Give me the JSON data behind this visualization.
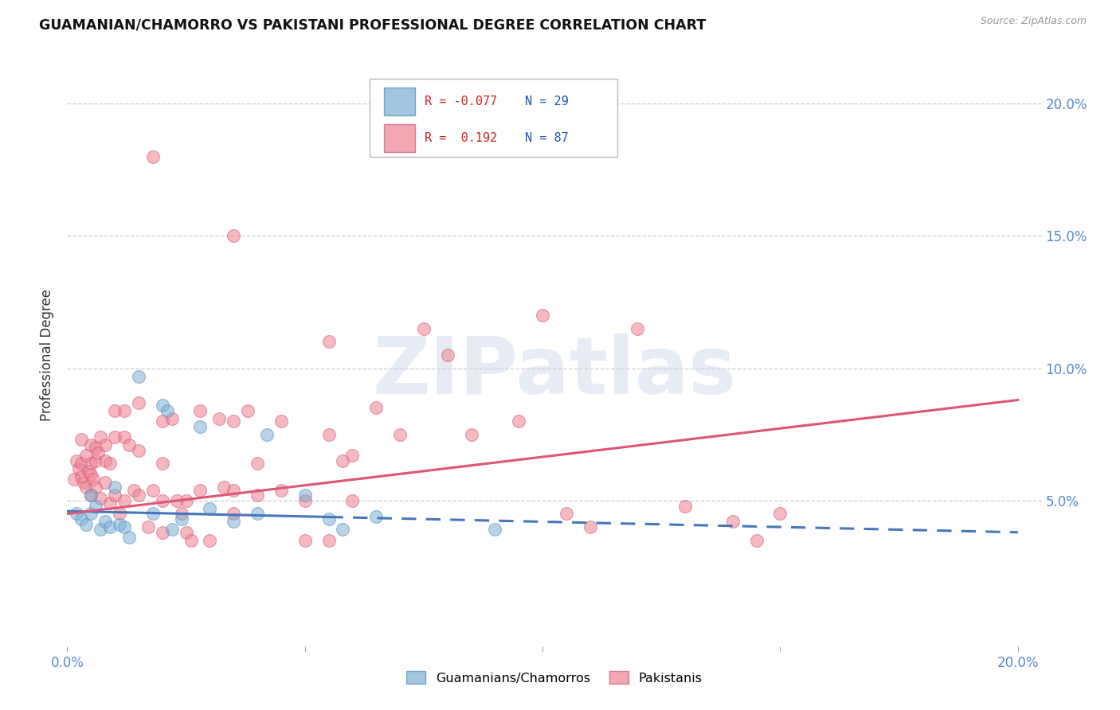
{
  "title": "GUAMANIAN/CHAMORRO VS PAKISTANI PROFESSIONAL DEGREE CORRELATION CHART",
  "source": "Source: ZipAtlas.com",
  "ylabel": "Professional Degree",
  "x_tick_labels": [
    "0.0%",
    "",
    "",
    "",
    "20.0%"
  ],
  "x_tick_values": [
    0.0,
    5.0,
    10.0,
    15.0,
    20.0
  ],
  "y_tick_labels": [
    "5.0%",
    "10.0%",
    "15.0%",
    "20.0%"
  ],
  "y_tick_values": [
    5.0,
    10.0,
    15.0,
    20.0
  ],
  "xlim": [
    0.0,
    20.5
  ],
  "ylim": [
    -0.5,
    21.5
  ],
  "legend_labels": [
    "Guamanians/Chamorros",
    "Pakistanis"
  ],
  "legend_r_values": [
    "-0.077",
    "0.192"
  ],
  "legend_n_values": [
    "29",
    "87"
  ],
  "blue_color": "#7bafd4",
  "pink_color": "#f08090",
  "blue_edge": "#5588bb",
  "pink_edge": "#cc5577",
  "trend_blue_color": "#4477bb",
  "trend_pink_color": "#dd5577",
  "watermark": "ZIPatlas",
  "blue_solid_end_x": 5.5,
  "blue_trend_x_start": 0.0,
  "blue_trend_x_end": 20.0,
  "blue_trend_y_start": 4.6,
  "blue_trend_y_end": 3.8,
  "pink_trend_x_start": 0.0,
  "pink_trend_x_end": 20.0,
  "pink_trend_y_start": 4.5,
  "pink_trend_y_end": 8.8,
  "blue_scatter": [
    [
      0.2,
      4.5
    ],
    [
      0.3,
      4.3
    ],
    [
      0.4,
      4.1
    ],
    [
      0.5,
      5.2
    ],
    [
      0.5,
      4.5
    ],
    [
      0.6,
      4.8
    ],
    [
      0.7,
      3.9
    ],
    [
      0.8,
      4.2
    ],
    [
      0.9,
      4.0
    ],
    [
      1.0,
      5.5
    ],
    [
      1.1,
      4.1
    ],
    [
      1.2,
      4.0
    ],
    [
      1.3,
      3.6
    ],
    [
      1.5,
      9.7
    ],
    [
      1.8,
      4.5
    ],
    [
      2.0,
      8.6
    ],
    [
      2.1,
      8.4
    ],
    [
      2.2,
      3.9
    ],
    [
      2.4,
      4.3
    ],
    [
      2.8,
      7.8
    ],
    [
      3.0,
      4.7
    ],
    [
      3.5,
      4.2
    ],
    [
      4.0,
      4.5
    ],
    [
      4.2,
      7.5
    ],
    [
      5.0,
      5.2
    ],
    [
      5.5,
      4.3
    ],
    [
      5.8,
      3.9
    ],
    [
      6.5,
      4.4
    ],
    [
      9.0,
      3.9
    ]
  ],
  "pink_scatter": [
    [
      0.15,
      5.8
    ],
    [
      0.2,
      6.5
    ],
    [
      0.25,
      6.2
    ],
    [
      0.3,
      7.3
    ],
    [
      0.3,
      6.4
    ],
    [
      0.3,
      5.9
    ],
    [
      0.35,
      5.7
    ],
    [
      0.4,
      6.7
    ],
    [
      0.4,
      5.5
    ],
    [
      0.45,
      6.1
    ],
    [
      0.5,
      7.1
    ],
    [
      0.5,
      6.4
    ],
    [
      0.5,
      6.0
    ],
    [
      0.5,
      5.2
    ],
    [
      0.55,
      5.8
    ],
    [
      0.6,
      7.0
    ],
    [
      0.6,
      6.5
    ],
    [
      0.6,
      5.5
    ],
    [
      0.65,
      6.8
    ],
    [
      0.7,
      7.4
    ],
    [
      0.7,
      5.1
    ],
    [
      0.8,
      7.1
    ],
    [
      0.8,
      6.5
    ],
    [
      0.8,
      5.7
    ],
    [
      0.9,
      6.4
    ],
    [
      0.9,
      4.9
    ],
    [
      1.0,
      8.4
    ],
    [
      1.0,
      7.4
    ],
    [
      1.0,
      5.2
    ],
    [
      1.1,
      4.5
    ],
    [
      1.2,
      8.4
    ],
    [
      1.2,
      7.4
    ],
    [
      1.2,
      5.0
    ],
    [
      1.3,
      7.1
    ],
    [
      1.4,
      5.4
    ],
    [
      1.5,
      8.7
    ],
    [
      1.5,
      6.9
    ],
    [
      1.5,
      5.2
    ],
    [
      1.7,
      4.0
    ],
    [
      1.8,
      5.4
    ],
    [
      1.8,
      18.0
    ],
    [
      2.0,
      8.0
    ],
    [
      2.0,
      6.4
    ],
    [
      2.0,
      5.0
    ],
    [
      2.0,
      3.8
    ],
    [
      2.2,
      8.1
    ],
    [
      2.3,
      5.0
    ],
    [
      2.4,
      4.5
    ],
    [
      2.5,
      5.0
    ],
    [
      2.5,
      3.8
    ],
    [
      2.6,
      3.5
    ],
    [
      2.8,
      8.4
    ],
    [
      2.8,
      5.4
    ],
    [
      3.0,
      3.5
    ],
    [
      3.2,
      8.1
    ],
    [
      3.3,
      5.5
    ],
    [
      3.5,
      8.0
    ],
    [
      3.5,
      15.0
    ],
    [
      3.5,
      5.4
    ],
    [
      3.5,
      4.5
    ],
    [
      3.8,
      8.4
    ],
    [
      4.0,
      6.4
    ],
    [
      4.0,
      5.2
    ],
    [
      4.5,
      8.0
    ],
    [
      4.5,
      5.4
    ],
    [
      5.0,
      5.0
    ],
    [
      5.0,
      3.5
    ],
    [
      5.5,
      11.0
    ],
    [
      5.5,
      7.5
    ],
    [
      5.5,
      3.5
    ],
    [
      5.8,
      6.5
    ],
    [
      6.0,
      6.7
    ],
    [
      6.0,
      5.0
    ],
    [
      6.5,
      8.5
    ],
    [
      7.0,
      7.5
    ],
    [
      7.5,
      11.5
    ],
    [
      8.0,
      10.5
    ],
    [
      8.5,
      7.5
    ],
    [
      9.5,
      8.0
    ],
    [
      10.0,
      12.0
    ],
    [
      10.5,
      4.5
    ],
    [
      11.0,
      4.0
    ],
    [
      12.0,
      11.5
    ],
    [
      13.0,
      4.8
    ],
    [
      14.0,
      4.2
    ],
    [
      14.5,
      3.5
    ],
    [
      15.0,
      4.5
    ]
  ]
}
